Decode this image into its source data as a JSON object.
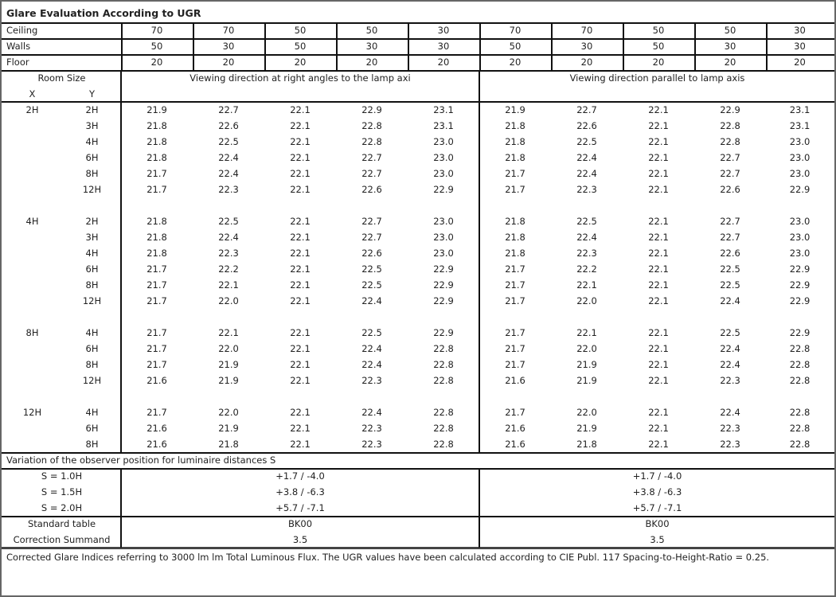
{
  "title": "Glare Evaluation According to UGR",
  "reflectances": [
    {
      "label": "Ceiling",
      "values": [
        "70",
        "70",
        "50",
        "50",
        "30",
        "70",
        "70",
        "50",
        "50",
        "30"
      ]
    },
    {
      "label": "Walls",
      "values": [
        "50",
        "30",
        "50",
        "30",
        "30",
        "50",
        "30",
        "50",
        "30",
        "30"
      ]
    },
    {
      "label": "Floor",
      "values": [
        "20",
        "20",
        "20",
        "20",
        "20",
        "20",
        "20",
        "20",
        "20",
        "20"
      ]
    }
  ],
  "room_size_label": "Room Size",
  "x_label": "X",
  "y_label": "Y",
  "direction_right_angles": "Viewing direction at right angles to the lamp axi",
  "direction_parallel": "Viewing direction parallel to lamp axis",
  "groups": [
    {
      "x": "2H",
      "rows": [
        {
          "y": "2H",
          "values": [
            "21.9",
            "22.7",
            "22.1",
            "22.9",
            "23.1",
            "21.9",
            "22.7",
            "22.1",
            "22.9",
            "23.1"
          ]
        },
        {
          "y": "3H",
          "values": [
            "21.8",
            "22.6",
            "22.1",
            "22.8",
            "23.1",
            "21.8",
            "22.6",
            "22.1",
            "22.8",
            "23.1"
          ]
        },
        {
          "y": "4H",
          "values": [
            "21.8",
            "22.5",
            "22.1",
            "22.8",
            "23.0",
            "21.8",
            "22.5",
            "22.1",
            "22.8",
            "23.0"
          ]
        },
        {
          "y": "6H",
          "values": [
            "21.8",
            "22.4",
            "22.1",
            "22.7",
            "23.0",
            "21.8",
            "22.4",
            "22.1",
            "22.7",
            "23.0"
          ]
        },
        {
          "y": "8H",
          "values": [
            "21.7",
            "22.4",
            "22.1",
            "22.7",
            "23.0",
            "21.7",
            "22.4",
            "22.1",
            "22.7",
            "23.0"
          ]
        },
        {
          "y": "12H",
          "values": [
            "21.7",
            "22.3",
            "22.1",
            "22.6",
            "22.9",
            "21.7",
            "22.3",
            "22.1",
            "22.6",
            "22.9"
          ]
        }
      ]
    },
    {
      "x": "4H",
      "rows": [
        {
          "y": "2H",
          "values": [
            "21.8",
            "22.5",
            "22.1",
            "22.7",
            "23.0",
            "21.8",
            "22.5",
            "22.1",
            "22.7",
            "23.0"
          ]
        },
        {
          "y": "3H",
          "values": [
            "21.8",
            "22.4",
            "22.1",
            "22.7",
            "23.0",
            "21.8",
            "22.4",
            "22.1",
            "22.7",
            "23.0"
          ]
        },
        {
          "y": "4H",
          "values": [
            "21.8",
            "22.3",
            "22.1",
            "22.6",
            "23.0",
            "21.8",
            "22.3",
            "22.1",
            "22.6",
            "23.0"
          ]
        },
        {
          "y": "6H",
          "values": [
            "21.7",
            "22.2",
            "22.1",
            "22.5",
            "22.9",
            "21.7",
            "22.2",
            "22.1",
            "22.5",
            "22.9"
          ]
        },
        {
          "y": "8H",
          "values": [
            "21.7",
            "22.1",
            "22.1",
            "22.5",
            "22.9",
            "21.7",
            "22.1",
            "22.1",
            "22.5",
            "22.9"
          ]
        },
        {
          "y": "12H",
          "values": [
            "21.7",
            "22.0",
            "22.1",
            "22.4",
            "22.9",
            "21.7",
            "22.0",
            "22.1",
            "22.4",
            "22.9"
          ]
        }
      ]
    },
    {
      "x": "8H",
      "rows": [
        {
          "y": "4H",
          "values": [
            "21.7",
            "22.1",
            "22.1",
            "22.5",
            "22.9",
            "21.7",
            "22.1",
            "22.1",
            "22.5",
            "22.9"
          ]
        },
        {
          "y": "6H",
          "values": [
            "21.7",
            "22.0",
            "22.1",
            "22.4",
            "22.8",
            "21.7",
            "22.0",
            "22.1",
            "22.4",
            "22.8"
          ]
        },
        {
          "y": "8H",
          "values": [
            "21.7",
            "21.9",
            "22.1",
            "22.4",
            "22.8",
            "21.7",
            "21.9",
            "22.1",
            "22.4",
            "22.8"
          ]
        },
        {
          "y": "12H",
          "values": [
            "21.6",
            "21.9",
            "22.1",
            "22.3",
            "22.8",
            "21.6",
            "21.9",
            "22.1",
            "22.3",
            "22.8"
          ]
        }
      ]
    },
    {
      "x": "12H",
      "rows": [
        {
          "y": "4H",
          "values": [
            "21.7",
            "22.0",
            "22.1",
            "22.4",
            "22.8",
            "21.7",
            "22.0",
            "22.1",
            "22.4",
            "22.8"
          ]
        },
        {
          "y": "6H",
          "values": [
            "21.6",
            "21.9",
            "22.1",
            "22.3",
            "22.8",
            "21.6",
            "21.9",
            "22.1",
            "22.3",
            "22.8"
          ]
        },
        {
          "y": "8H",
          "values": [
            "21.6",
            "21.8",
            "22.1",
            "22.3",
            "22.8",
            "21.6",
            "21.8",
            "22.1",
            "22.3",
            "22.8"
          ]
        }
      ]
    }
  ],
  "variation_label": "Variation of the observer position for luminaire distances S",
  "variations": [
    {
      "label": "S = 1.0H",
      "left": "+1.7 / -4.0",
      "right": "+1.7 / -4.0"
    },
    {
      "label": "S = 1.5H",
      "left": "+3.8 / -6.3",
      "right": "+3.8 / -6.3"
    },
    {
      "label": "S = 2.0H",
      "left": "+5.7 / -7.1",
      "right": "+5.7 / -7.1"
    }
  ],
  "standard_table": {
    "label": "Standard table",
    "left": "BK00",
    "right": "BK00"
  },
  "correction_summand": {
    "label": "Correction Summand",
    "left": "3.5",
    "right": "3.5"
  },
  "footer": "Corrected Glare Indices referring to 3000 lm lm Total Luminous Flux. The UGR values have been calculated according to CIE Publ. 117    Spacing-to-Height-Ratio = 0.25."
}
